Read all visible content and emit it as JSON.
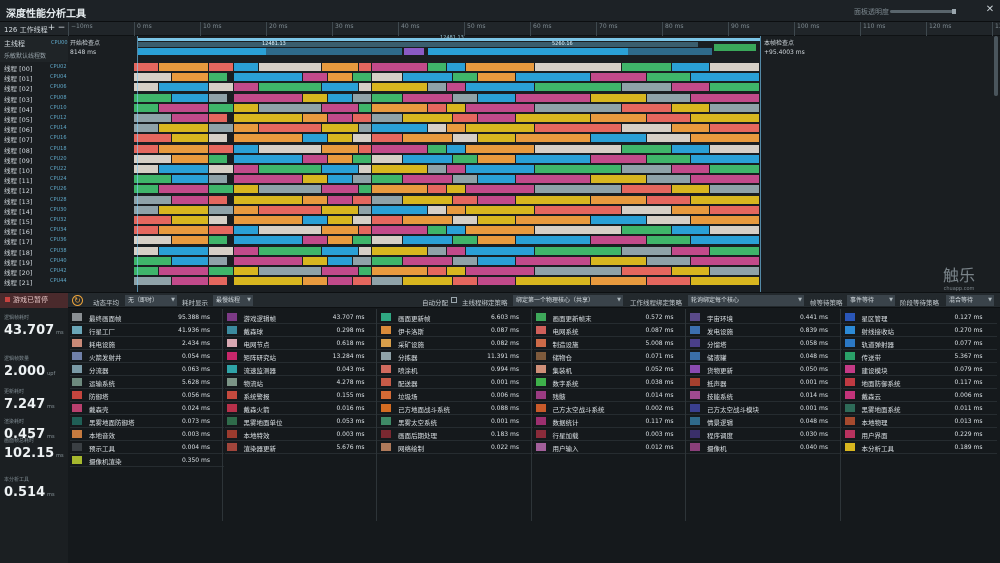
{
  "app": {
    "title": "深度性能分析工具",
    "opacity_label": "面板透明度",
    "close_icon": "✕"
  },
  "timeline": {
    "worker_count_label": "126 工作线程",
    "add_icon": "+",
    "remove_icon": "−",
    "ruler_ticks": [
      "−10ms",
      "0 ms",
      "10 ms",
      "20 ms",
      "30 ms",
      "40 ms",
      "50 ms",
      "60 ms",
      "70 ms",
      "80 ms",
      "90 ms",
      "100 ms",
      "110 ms",
      "120 ms",
      "130 ms"
    ],
    "main_thread_label": "主线程",
    "main_thread_cpu": "CPU00",
    "gpu_label": "乐敏默认线程数",
    "start_checkpoint_label": "开始检查点",
    "start_checkpoint_time": "8148 ms",
    "end_checkpoint_label": "本帧检查点",
    "end_checkpoint_time": "+95.4003 ms",
    "frame_label_1": "12481.13",
    "frame_label_2": "12481.13",
    "frame_label_3": "5260.16",
    "threads": [
      {
        "name": "线程 [00]",
        "cpu": "CPU02"
      },
      {
        "name": "线程 [01]",
        "cpu": "CPU04"
      },
      {
        "name": "线程 [02]",
        "cpu": "CPU06"
      },
      {
        "name": "线程 [03]",
        "cpu": "CPU08"
      },
      {
        "name": "线程 [04]",
        "cpu": "CPU10"
      },
      {
        "name": "线程 [05]",
        "cpu": "CPU12"
      },
      {
        "name": "线程 [06]",
        "cpu": "CPU14"
      },
      {
        "name": "线程 [07]",
        "cpu": "CPU16"
      },
      {
        "name": "线程 [08]",
        "cpu": "CPU18"
      },
      {
        "name": "线程 [09]",
        "cpu": "CPU20"
      },
      {
        "name": "线程 [10]",
        "cpu": "CPU22"
      },
      {
        "name": "线程 [11]",
        "cpu": "CPU24"
      },
      {
        "name": "线程 [12]",
        "cpu": "CPU26"
      },
      {
        "name": "线程 [13]",
        "cpu": "CPU28"
      },
      {
        "name": "线程 [14]",
        "cpu": "CPU30"
      },
      {
        "name": "线程 [15]",
        "cpu": "CPU32"
      },
      {
        "name": "线程 [16]",
        "cpu": "CPU34"
      },
      {
        "name": "线程 [17]",
        "cpu": "CPU36"
      },
      {
        "name": "线程 [18]",
        "cpu": "CPU38"
      },
      {
        "name": "线程 [19]",
        "cpu": "CPU40"
      },
      {
        "name": "线程 [20]",
        "cpu": "CPU42"
      },
      {
        "name": "线程 [21]",
        "cpu": "CPU44"
      }
    ]
  },
  "controls": {
    "pause_label": "游戏已暂停",
    "smoothing_label": "动态平均",
    "smoothing_value": "无（即时）",
    "timing_label": "耗时显示",
    "timing_value": "最慢线程",
    "autoscale_label": "自动分配",
    "mainthread_strategy_label": "主线程绑定策略",
    "mainthread_strategy_value": "绑定第一个物理核心（共享）",
    "worker_strategy_label": "工作线程绑定策略",
    "worker_strategy_value": "轮询绑定每个核心",
    "frame_wait_label": "帧等待策略",
    "frame_wait_value": "事件等待",
    "phase_wait_label": "阶段等待策略",
    "phase_wait_value": "混合等待"
  },
  "stats": [
    {
      "label": "逻辑帧耗时",
      "value": "43.707",
      "unit": "ms"
    },
    {
      "label": "逻辑帧数量",
      "value": "2.000",
      "unit": "upf"
    },
    {
      "label": "更新耗时",
      "value": "7.247",
      "unit": "ms"
    },
    {
      "label": "渲染耗时",
      "value": "0.457",
      "unit": "ms"
    },
    {
      "label": "画面帧总耗时",
      "value": "102.15",
      "unit": "ms"
    },
    {
      "label": "本分析工具",
      "value": "0.514",
      "unit": "ms"
    }
  ],
  "systems": [
    [
      {
        "name": "最终画面帧",
        "value": "95.388 ms",
        "color": "#8a8f93"
      },
      {
        "name": "行星工厂",
        "value": "41.936 ms",
        "color": "#6aa6b8"
      },
      {
        "name": "耗电设施",
        "value": "2.434 ms",
        "color": "#c98a78"
      },
      {
        "name": "火箭发射井",
        "value": "0.054 ms",
        "color": "#6f7fa8"
      },
      {
        "name": "分流器",
        "value": "0.063 ms",
        "color": "#7a9aa6"
      },
      {
        "name": "运输系统",
        "value": "5.628 ms",
        "color": "#6d8a7e"
      },
      {
        "name": "防御塔",
        "value": "0.056 ms",
        "color": "#c5453e"
      },
      {
        "name": "戴森壳",
        "value": "0.024 ms",
        "color": "#b9406e"
      },
      {
        "name": "黑雾地面防御塔",
        "value": "0.073 ms",
        "color": "#1f5f56"
      },
      {
        "name": "本地音效",
        "value": "0.003 ms",
        "color": "#c57a3f"
      },
      {
        "name": "预示工具",
        "value": "0.004 ms",
        "color": "#3a3f43"
      },
      {
        "name": "摄像机渲染",
        "value": "0.350 ms",
        "color": "#a6b82e"
      }
    ],
    [
      {
        "name": "游戏逻辑帧",
        "value": "43.707 ms",
        "color": "#7c3a86"
      },
      {
        "name": "戴森球",
        "value": "0.298 ms",
        "color": "#3b8a9e"
      },
      {
        "name": "电网节点",
        "value": "0.618 ms",
        "color": "#d9a9b3"
      },
      {
        "name": "矩阵研究站",
        "value": "13.284 ms",
        "color": "#c8276a"
      },
      {
        "name": "流速监测器",
        "value": "0.043 ms",
        "color": "#2fa3a7"
      },
      {
        "name": "物流站",
        "value": "4.278 ms",
        "color": "#7b9486"
      },
      {
        "name": "系统警报",
        "value": "0.155 ms",
        "color": "#c54a3e"
      },
      {
        "name": "戴森火箭",
        "value": "0.016 ms",
        "color": "#b7304a"
      },
      {
        "name": "黑雾地面单位",
        "value": "0.053 ms",
        "color": "#2f6b4a"
      },
      {
        "name": "本地特效",
        "value": "0.003 ms",
        "color": "#9b3b2e"
      },
      {
        "name": "渲染器更新",
        "value": "5.676 ms",
        "color": "#a0453b"
      }
    ],
    [
      {
        "name": "画面更新帧",
        "value": "6.603 ms",
        "color": "#2fa882"
      },
      {
        "name": "伊卡洛斯",
        "value": "0.087 ms",
        "color": "#d98b3a"
      },
      {
        "name": "采矿设施",
        "value": "0.082 ms",
        "color": "#d9a04b"
      },
      {
        "name": "分拣器",
        "value": "11.391 ms",
        "color": "#8fa2a8"
      },
      {
        "name": "喷涂机",
        "value": "0.994 ms",
        "color": "#d06a5e"
      },
      {
        "name": "配送器",
        "value": "0.001 ms",
        "color": "#c75b48"
      },
      {
        "name": "垃圾场",
        "value": "0.006 ms",
        "color": "#d46a35"
      },
      {
        "name": "己方地面战斗系统",
        "value": "0.088 ms",
        "color": "#d46c22"
      },
      {
        "name": "黑雾太空系统",
        "value": "0.001 ms",
        "color": "#3e8a66"
      },
      {
        "name": "画面后期处理",
        "value": "0.183 ms",
        "color": "#7a2830"
      },
      {
        "name": "网络绘制",
        "value": "0.022 ms",
        "color": "#b07a5a"
      }
    ],
    [
      {
        "name": "画面更新帧末",
        "value": "0.572 ms",
        "color": "#3ea85a"
      },
      {
        "name": "电网系统",
        "value": "0.087 ms",
        "color": "#cf5f5a"
      },
      {
        "name": "制造设施",
        "value": "5.008 ms",
        "color": "#cd6a48"
      },
      {
        "name": "储物仓",
        "value": "0.071 ms",
        "color": "#7e5a3c"
      },
      {
        "name": "集装机",
        "value": "0.052 ms",
        "color": "#cf8f78"
      },
      {
        "name": "数字系统",
        "value": "0.038 ms",
        "color": "#3eb04a"
      },
      {
        "name": "残骸",
        "value": "0.014 ms",
        "color": "#9a3b82"
      },
      {
        "name": "己方太空战斗系统",
        "value": "0.002 ms",
        "color": "#c85a2a"
      },
      {
        "name": "数据统计",
        "value": "0.117 ms",
        "color": "#9c2f6f"
      },
      {
        "name": "行星加载",
        "value": "0.003 ms",
        "color": "#8a2b3a"
      },
      {
        "name": "用户输入",
        "value": "0.012 ms",
        "color": "#a25f9a"
      }
    ],
    [
      {
        "name": "宇宙环境",
        "value": "0.441 ms",
        "color": "#5a4a8a"
      },
      {
        "name": "发电设施",
        "value": "0.839 ms",
        "color": "#3c6fb0"
      },
      {
        "name": "分馏塔",
        "value": "0.058 ms",
        "color": "#4a3f8a"
      },
      {
        "name": "储液罐",
        "value": "0.048 ms",
        "color": "#3a6ea8"
      },
      {
        "name": "货物更新",
        "value": "0.050 ms",
        "color": "#8a4ab0"
      },
      {
        "name": "抵声器",
        "value": "0.001 ms",
        "color": "#a6402e"
      },
      {
        "name": "技能系统",
        "value": "0.014 ms",
        "color": "#a04a90"
      },
      {
        "name": "己方太空战斗模块",
        "value": "0.001 ms",
        "color": "#3a3f8f"
      },
      {
        "name": "情景逻辑",
        "value": "0.048 ms",
        "color": "#2f6a8a"
      },
      {
        "name": "程序调度",
        "value": "0.030 ms",
        "color": "#3a2f6a"
      },
      {
        "name": "摄像机",
        "value": "0.040 ms",
        "color": "#8a3f7a"
      }
    ],
    [
      {
        "name": "星区管理",
        "value": "0.127 ms",
        "color": "#2a56b8"
      },
      {
        "name": "射线接收站",
        "value": "0.270 ms",
        "color": "#2c8ad6"
      },
      {
        "name": "轨道弹射器",
        "value": "0.077 ms",
        "color": "#2b78c4"
      },
      {
        "name": "传送带",
        "value": "5.367 ms",
        "color": "#2aa068"
      },
      {
        "name": "建设模块",
        "value": "0.079 ms",
        "color": "#c43a86"
      },
      {
        "name": "地面防御系统",
        "value": "0.117 ms",
        "color": "#c03a42"
      },
      {
        "name": "戴森云",
        "value": "0.006 ms",
        "color": "#c2337a"
      },
      {
        "name": "黑雾地面系统",
        "value": "0.011 ms",
        "color": "#2e6b58"
      },
      {
        "name": "本地物理",
        "value": "0.013 ms",
        "color": "#a64a2e"
      },
      {
        "name": "用户界面",
        "value": "0.229 ms",
        "color": "#b8325e"
      },
      {
        "name": "本分析工具",
        "value": "0.189 ms",
        "color": "#d8b61f"
      }
    ]
  ],
  "watermark": {
    "logo": "触乐",
    "url": "chuapp.com"
  }
}
